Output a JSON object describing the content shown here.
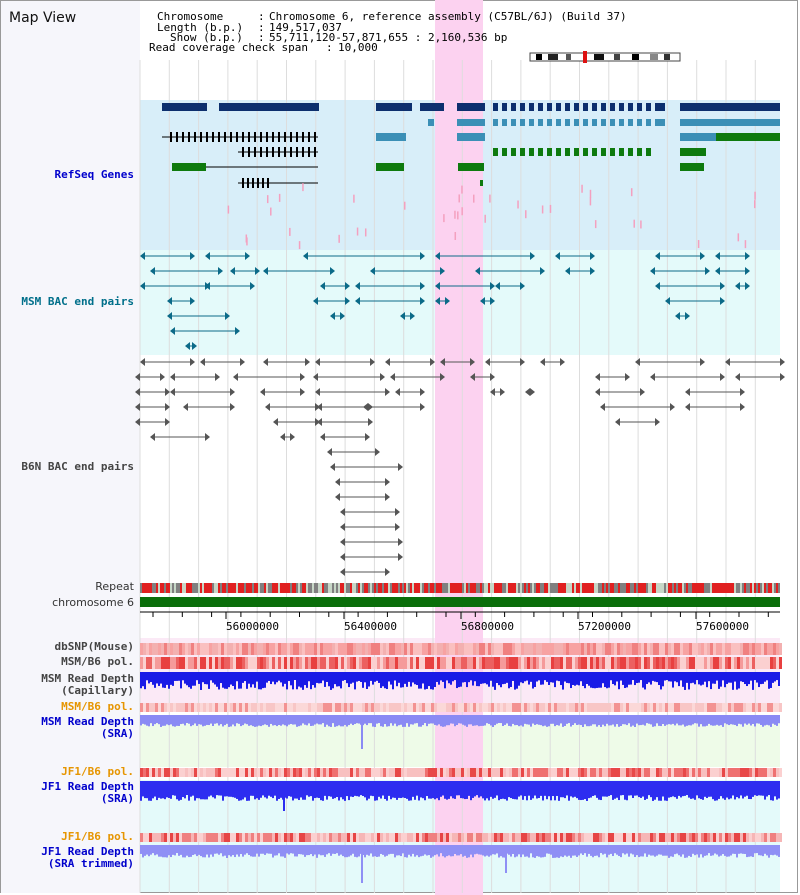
{
  "window": {
    "title": "Map View"
  },
  "header": {
    "chromosome_key": "Chromosome",
    "chromosome_val": "Chromosome 6, reference assembly (C57BL/6J) (Build 37)",
    "length_key": "Length (b.p.)",
    "length_val": "149,517,037",
    "show_key": "Show (b.p.)",
    "show_val": "55,711,120-57,871,655 : 2,160,536 bp",
    "coverage_key": "Read coverage check span",
    "coverage_val": "10,000"
  },
  "tracks": {
    "refseq": "RefSeq Genes",
    "msm_bac": "MSM BAC end pairs",
    "b6n_bac": "B6N BAC end pairs",
    "repeat": "Repeat",
    "chromosome": "chromosome 6",
    "dbsnp": "dbSNP(Mouse)",
    "msm_b6_pol": "MSM/B6 pol.",
    "msm_depth_cap_1": "MSM Read Depth",
    "msm_depth_cap_2": "(Capillary)",
    "msm_b6_pol2": "MSM/B6 pol.",
    "msm_depth_sra_1": "MSM Read Depth",
    "msm_depth_sra_2": "(SRA)",
    "jf1_b6_pol": "JF1/B6 pol.",
    "jf1_depth_sra_1": "JF1 Read Depth",
    "jf1_depth_sra_2": "(SRA)",
    "jf1_b6_pol2": "JF1/B6 pol.",
    "jf1_depth_trim_1": "JF1 Read Depth",
    "jf1_depth_trim_2": "(SRA trimmed)"
  },
  "axis": {
    "ticks": [
      "56000000",
      "56400000",
      "56800000",
      "57200000",
      "57600000"
    ]
  },
  "colors": {
    "refseq_bg": "#d8eef9",
    "msm_bg": "#e4fafa",
    "highlight": "#fcd2f0",
    "refseq_dark": "#0d2f6e",
    "refseq_mid": "#3b8fb6",
    "refseq_green": "#0e7a0e",
    "msm_feature": "#0b6a88",
    "b6n_feature": "#555555",
    "depth_blue": "#2d2df0",
    "depth_lavender": "#8c8cf5",
    "chrom_green": "#0a6e0a"
  }
}
